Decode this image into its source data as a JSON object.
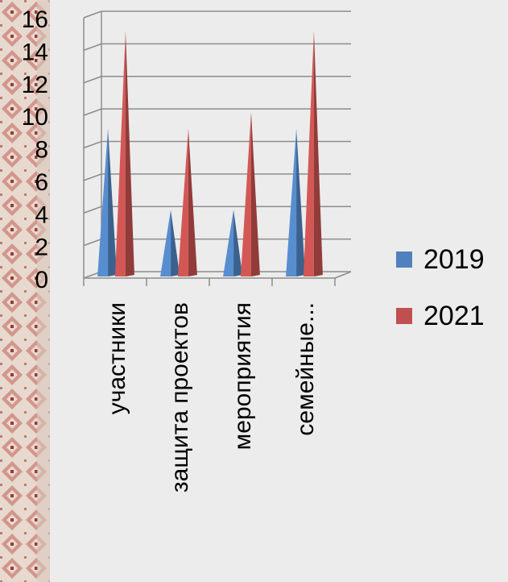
{
  "chart_data": {
    "type": "bar",
    "style": "3d-cone",
    "categories": [
      "участники",
      "защита проектов",
      "мероприятия",
      "семейные..."
    ],
    "series": [
      {
        "name": "2019",
        "values": [
          9,
          4,
          4,
          9
        ],
        "color": "#4f81bd"
      },
      {
        "name": "2021",
        "values": [
          15,
          9,
          10,
          15
        ],
        "color": "#c0504d"
      }
    ],
    "yticks": [
      "0",
      "2",
      "4",
      "6",
      "8",
      "10",
      "12",
      "14",
      "16"
    ],
    "ylim": [
      0,
      16
    ],
    "title": "",
    "xlabel": "",
    "ylabel": "",
    "grid": true,
    "legend_position": "right"
  }
}
